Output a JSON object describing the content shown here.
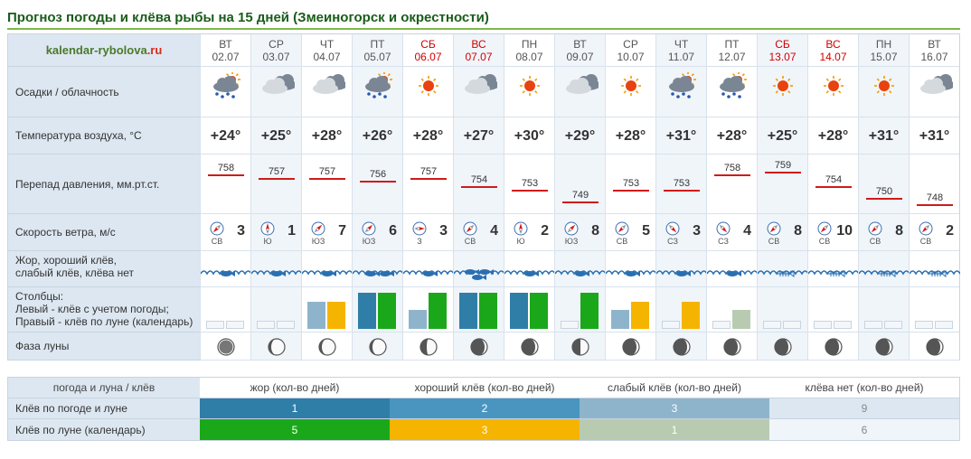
{
  "title": "Прогноз погоды и клёва рыбы на 15 дней (Змеиногорск и окрестности)",
  "brand": {
    "main": "kalendar-rybolova",
    "tld": ".ru"
  },
  "row_labels": {
    "precip": "Осадки / облачность",
    "temp": "Температура воздуха, °С",
    "pressure": "Перепад давления, мм.рт.ст.",
    "wind": "Скорость ветра, м/с",
    "bite_line1": "Жор, хороший клёв,",
    "bite_line2": "слабый клёв, клёва нет",
    "bars_line1": "Столбцы:",
    "bars_line2": "Левый - клёв с учетом погоды;",
    "bars_line3": "Правый - клёв по луне (календарь)",
    "moon": "Фаза луны"
  },
  "colors": {
    "zhor": "#2f7ea8",
    "good": "#f5b400",
    "weak": "#8eb4cc",
    "none": "#b8cbb0",
    "moon_green": "#1aa81a",
    "pressure_bar": "#d01a1a"
  },
  "days": [
    {
      "dw": "ВТ",
      "dt": "02.07",
      "weekend": false,
      "wx": "rain-sun",
      "temp": "+24°",
      "p": "758",
      "wind": "3",
      "dir": "СВ",
      "fish": 1,
      "l": 0,
      "r": 0,
      "moon": "full"
    },
    {
      "dw": "СР",
      "dt": "03.07",
      "weekend": false,
      "wx": "cloud",
      "temp": "+25°",
      "p": "757",
      "wind": "1",
      "dir": "Ю",
      "fish": 1,
      "l": 0,
      "r": 0,
      "moon": "wane"
    },
    {
      "dw": "ЧТ",
      "dt": "04.07",
      "weekend": false,
      "wx": "cloud",
      "temp": "+28°",
      "p": "757",
      "wind": "7",
      "dir": "ЮЗ",
      "fish": 1,
      "l": 2,
      "r": 2,
      "moon": "wane"
    },
    {
      "dw": "ПТ",
      "dt": "05.07",
      "weekend": false,
      "wx": "rain-sun",
      "temp": "+26°",
      "p": "756",
      "wind": "6",
      "dir": "ЮЗ",
      "fish": 2,
      "l": 1,
      "r": 1,
      "moon": "wane"
    },
    {
      "dw": "СБ",
      "dt": "06.07",
      "weekend": true,
      "wx": "sun",
      "temp": "+28°",
      "p": "757",
      "wind": "3",
      "dir": "З",
      "fish": 1,
      "l": 3,
      "r": 1,
      "moon": "new"
    },
    {
      "dw": "ВС",
      "dt": "07.07",
      "weekend": true,
      "wx": "cloud",
      "temp": "+27°",
      "p": "754",
      "wind": "4",
      "dir": "СВ",
      "fish": 3,
      "l": 1,
      "r": 1,
      "moon": "wax"
    },
    {
      "dw": "ПН",
      "dt": "08.07",
      "weekend": false,
      "wx": "sun",
      "temp": "+30°",
      "p": "753",
      "wind": "2",
      "dir": "Ю",
      "fish": 1,
      "l": 1,
      "r": 1,
      "moon": "wax"
    },
    {
      "dw": "ВТ",
      "dt": "09.07",
      "weekend": false,
      "wx": "cloud",
      "temp": "+29°",
      "p": "749",
      "wind": "8",
      "dir": "ЮЗ",
      "fish": 1,
      "l": 0,
      "r": 1,
      "moon": "half"
    },
    {
      "dw": "СР",
      "dt": "10.07",
      "weekend": false,
      "wx": "sun",
      "temp": "+28°",
      "p": "753",
      "wind": "5",
      "dir": "СВ",
      "fish": 1,
      "l": 3,
      "r": 2,
      "moon": "wax"
    },
    {
      "dw": "ЧТ",
      "dt": "11.07",
      "weekend": false,
      "wx": "rain-sun",
      "temp": "+31°",
      "p": "753",
      "wind": "3",
      "dir": "СЗ",
      "fish": 1,
      "l": 0,
      "r": 2,
      "moon": "wax"
    },
    {
      "dw": "ПТ",
      "dt": "12.07",
      "weekend": false,
      "wx": "rain-sun",
      "temp": "+28°",
      "p": "758",
      "wind": "4",
      "dir": "СЗ",
      "fish": 1,
      "l": 0,
      "r": 4,
      "moon": "wax"
    },
    {
      "dw": "СБ",
      "dt": "13.07",
      "weekend": true,
      "wx": "sun",
      "temp": "+25°",
      "p": "759",
      "wind": "8",
      "dir": "СВ",
      "fish": 0,
      "l": 0,
      "r": 0,
      "moon": "wax"
    },
    {
      "dw": "ВС",
      "dt": "14.07",
      "weekend": true,
      "wx": "sun",
      "temp": "+28°",
      "p": "754",
      "wind": "10",
      "dir": "СВ",
      "fish": 0,
      "l": 0,
      "r": 0,
      "moon": "wax"
    },
    {
      "dw": "ПН",
      "dt": "15.07",
      "weekend": false,
      "wx": "sun",
      "temp": "+31°",
      "p": "750",
      "wind": "8",
      "dir": "СВ",
      "fish": 0,
      "l": 0,
      "r": 0,
      "moon": "wax"
    },
    {
      "dw": "ВТ",
      "dt": "16.07",
      "weekend": false,
      "wx": "cloud",
      "temp": "+31°",
      "p": "748",
      "wind": "2",
      "dir": "СВ",
      "fish": 0,
      "l": 0,
      "r": 0,
      "moon": "wax"
    }
  ],
  "legend": {
    "header": [
      "погода и луна / клёв",
      "жор (кол-во дней)",
      "хороший клёв (кол-во дней)",
      "слабый клёв (кол-во дней)",
      "клёва нет (кол-во дней)"
    ],
    "rows": [
      {
        "label": "Клёв по погоде и луне",
        "values": [
          "1",
          "2",
          "3",
          "9"
        ]
      },
      {
        "label": "Клёв по луне (календарь)",
        "values": [
          "5",
          "3",
          "1",
          "6"
        ]
      }
    ]
  }
}
